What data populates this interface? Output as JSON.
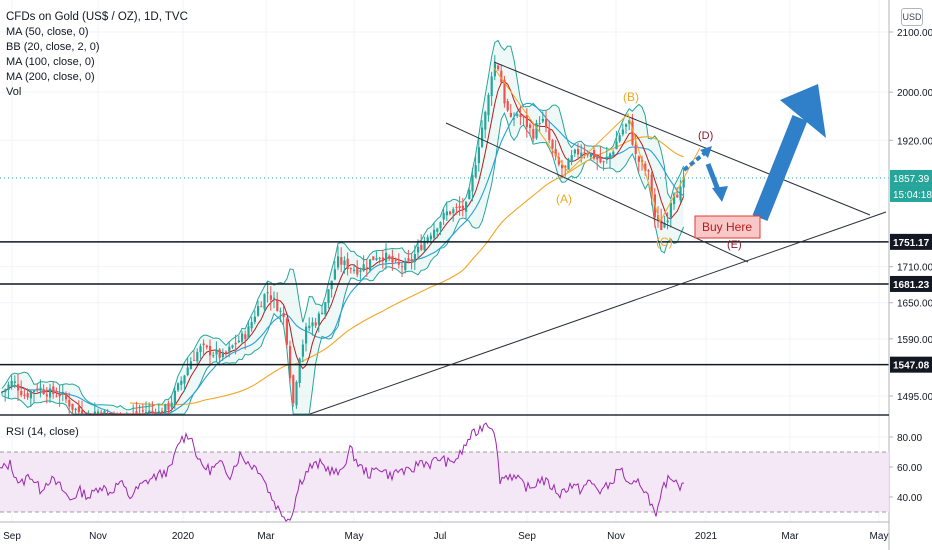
{
  "header": {
    "title": "CFDs on Gold (US$ / OZ), 1D, TVC",
    "indicators": [
      "MA (50, close, 0)",
      "BB (20, close, 2, 0)",
      "MA (100, close, 0)",
      "MA (200, close, 0)",
      "Vol"
    ],
    "currency_button": "USD"
  },
  "rsi_panel": {
    "label": "RSI (14, close)"
  },
  "colors": {
    "up": "#26a69a",
    "down": "#ef5350",
    "bb": "#26a69a",
    "bb_fill": "#e0f2f1",
    "ma50": "#26a0da",
    "ma20": "#b71c1c",
    "ma100": "#f5a623",
    "rsi": "#9c27b0",
    "rsi_band": "#f3e5f5",
    "wave": "#f5a623",
    "arrow": "#2f80c8",
    "buy_fill": "#f8c8c8",
    "buy_border": "#e53935"
  },
  "chart_data": [
    {
      "type": "candlestick",
      "x_ticks": [
        "Sep",
        "Nov",
        "2020",
        "Mar",
        "May",
        "Jul",
        "Sep",
        "Nov",
        "2021",
        "Mar",
        "May"
      ],
      "y_ticks": [
        1495,
        1590,
        1650,
        1710,
        1920,
        2000,
        2100
      ],
      "y_range": [
        1440,
        2120
      ],
      "price_labels": [
        {
          "value": 1857.39,
          "text": "1857.39",
          "kind": "last"
        },
        {
          "value": 1835,
          "text": "15:04:18",
          "kind": "countdown"
        },
        {
          "value": 1751.17,
          "text": "1751.17",
          "kind": "level"
        },
        {
          "value": 1681.23,
          "text": "1681.23",
          "kind": "level"
        },
        {
          "value": 1547.08,
          "text": "1547.08",
          "kind": "level"
        }
      ],
      "horizontal_levels": [
        1751.17,
        1681.23,
        1547.08
      ],
      "wave_labels": [
        "(A)",
        "(B)",
        "(C)",
        "(D)",
        "(E)"
      ],
      "annotation": "Buy Here",
      "series_path": [
        [
          0,
          1500
        ],
        [
          12,
          1520
        ],
        [
          24,
          1495
        ],
        [
          36,
          1510
        ],
        [
          48,
          1500
        ],
        [
          60,
          1498
        ],
        [
          72,
          1475
        ],
        [
          84,
          1462
        ],
        [
          96,
          1470
        ],
        [
          108,
          1462
        ],
        [
          120,
          1458
        ],
        [
          132,
          1462
        ],
        [
          144,
          1470
        ],
        [
          156,
          1465
        ],
        [
          168,
          1478
        ],
        [
          180,
          1520
        ],
        [
          190,
          1555
        ],
        [
          200,
          1575
        ],
        [
          210,
          1568
        ],
        [
          222,
          1560
        ],
        [
          234,
          1582
        ],
        [
          246,
          1600
        ],
        [
          256,
          1640
        ],
        [
          266,
          1670
        ],
        [
          276,
          1645
        ],
        [
          284,
          1620
        ],
        [
          292,
          1480
        ],
        [
          298,
          1560
        ],
        [
          306,
          1610
        ],
        [
          316,
          1620
        ],
        [
          326,
          1660
        ],
        [
          336,
          1720
        ],
        [
          346,
          1712
        ],
        [
          356,
          1705
        ],
        [
          366,
          1715
        ],
        [
          376,
          1730
        ],
        [
          386,
          1725
        ],
        [
          396,
          1710
        ],
        [
          406,
          1712
        ],
        [
          416,
          1735
        ],
        [
          426,
          1760
        ],
        [
          436,
          1780
        ],
        [
          446,
          1800
        ],
        [
          456,
          1805
        ],
        [
          466,
          1810
        ],
        [
          474,
          1880
        ],
        [
          480,
          1935
        ],
        [
          486,
          1975
        ],
        [
          492,
          2050
        ],
        [
          498,
          2040
        ],
        [
          504,
          1980
        ],
        [
          510,
          1950
        ],
        [
          516,
          1965
        ],
        [
          524,
          1950
        ],
        [
          532,
          1930
        ],
        [
          540,
          1960
        ],
        [
          548,
          1920
        ],
        [
          556,
          1880
        ],
        [
          564,
          1870
        ],
        [
          572,
          1895
        ],
        [
          582,
          1905
        ],
        [
          592,
          1895
        ],
        [
          602,
          1880
        ],
        [
          612,
          1905
        ],
        [
          620,
          1935
        ],
        [
          628,
          1950
        ],
        [
          634,
          1895
        ],
        [
          640,
          1880
        ],
        [
          648,
          1860
        ],
        [
          654,
          1790
        ],
        [
          660,
          1775
        ],
        [
          666,
          1790
        ],
        [
          672,
          1840
        ],
        [
          678,
          1830
        ],
        [
          684,
          1857
        ]
      ],
      "rsi": {
        "y_ticks": [
          40,
          60,
          80
        ],
        "upper": 70,
        "lower": 30,
        "values": [
          [
            0,
            58
          ],
          [
            10,
            62
          ],
          [
            20,
            48
          ],
          [
            30,
            55
          ],
          [
            40,
            45
          ],
          [
            50,
            52
          ],
          [
            60,
            47
          ],
          [
            70,
            38
          ],
          [
            80,
            44
          ],
          [
            90,
            40
          ],
          [
            100,
            48
          ],
          [
            110,
            43
          ],
          [
            120,
            50
          ],
          [
            130,
            40
          ],
          [
            140,
            47
          ],
          [
            150,
            52
          ],
          [
            160,
            55
          ],
          [
            170,
            58
          ],
          [
            180,
            78
          ],
          [
            190,
            82
          ],
          [
            200,
            62
          ],
          [
            210,
            58
          ],
          [
            220,
            62
          ],
          [
            230,
            55
          ],
          [
            240,
            68
          ],
          [
            250,
            62
          ],
          [
            260,
            58
          ],
          [
            270,
            42
          ],
          [
            280,
            30
          ],
          [
            290,
            25
          ],
          [
            300,
            50
          ],
          [
            310,
            60
          ],
          [
            320,
            62
          ],
          [
            330,
            58
          ],
          [
            340,
            55
          ],
          [
            350,
            72
          ],
          [
            360,
            60
          ],
          [
            370,
            55
          ],
          [
            380,
            60
          ],
          [
            390,
            54
          ],
          [
            400,
            58
          ],
          [
            410,
            56
          ],
          [
            420,
            64
          ],
          [
            430,
            62
          ],
          [
            440,
            66
          ],
          [
            450,
            62
          ],
          [
            460,
            68
          ],
          [
            470,
            80
          ],
          [
            478,
            84
          ],
          [
            486,
            90
          ],
          [
            494,
            86
          ],
          [
            500,
            52
          ],
          [
            510,
            55
          ],
          [
            520,
            50
          ],
          [
            530,
            45
          ],
          [
            540,
            52
          ],
          [
            550,
            48
          ],
          [
            560,
            42
          ],
          [
            570,
            48
          ],
          [
            580,
            45
          ],
          [
            590,
            50
          ],
          [
            600,
            44
          ],
          [
            610,
            48
          ],
          [
            620,
            60
          ],
          [
            630,
            46
          ],
          [
            640,
            50
          ],
          [
            650,
            38
          ],
          [
            656,
            25
          ],
          [
            664,
            48
          ],
          [
            672,
            54
          ],
          [
            680,
            48
          ],
          [
            684,
            52
          ]
        ]
      }
    }
  ]
}
